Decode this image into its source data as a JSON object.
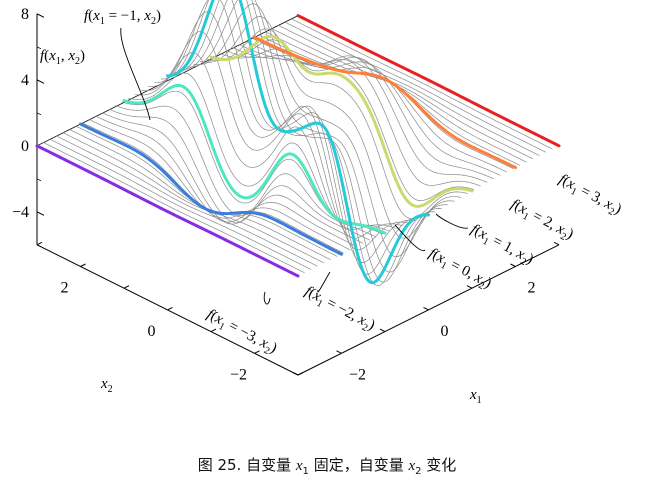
{
  "caption": {
    "prefix": "图 25. 自变量 ",
    "var1": "x",
    "sub1": "1",
    "middle": " 固定，自变量 ",
    "var2": "x",
    "sub2": "2",
    "suffix": " 变化"
  },
  "chart_data": {
    "type": "surface-3d-line-family",
    "zlabel": "f(x1, x2)",
    "xlabel": "x1",
    "ylabel": "x2",
    "x1_range": [
      -3,
      3
    ],
    "x2_range": [
      -3,
      3
    ],
    "z_range": [
      -6,
      8
    ],
    "z_ticks": [
      {
        "value": 8,
        "label": "8"
      },
      {
        "value": 4,
        "label": "4"
      },
      {
        "value": 0,
        "label": "0"
      },
      {
        "value": -4,
        "label": "−4"
      }
    ],
    "x1_ticks": [
      {
        "value": 2,
        "label": "2"
      },
      {
        "value": 0,
        "label": "0"
      },
      {
        "value": -2,
        "label": "−2"
      }
    ],
    "x2_ticks": [
      {
        "value": 2,
        "label": "2"
      },
      {
        "value": 0,
        "label": "0"
      },
      {
        "value": -2,
        "label": "−2"
      }
    ],
    "grid_lines": 41,
    "highlighted_series": [
      {
        "x1": -3,
        "label": "f(x1 = −3, x2)",
        "color": "#8a2be2"
      },
      {
        "x1": -2,
        "label": "f(x1 = −2, x2)",
        "color": "#3a7de0"
      },
      {
        "x1": -1,
        "label": "f(x1 = −1, x2)",
        "color": "#4ee8c0"
      },
      {
        "x1": 0,
        "label": "f(x1 = 0, x2)",
        "color": "#25c9d9"
      },
      {
        "x1": 1,
        "label": "f(x1 = 1, x2)",
        "color": "#c9db6e"
      },
      {
        "x1": 2,
        "label": "f(x1 = 2, x2)",
        "color": "#ff7f3a"
      },
      {
        "x1": 3,
        "label": "f(x1 = 3, x2)",
        "color": "#e8201f"
      }
    ],
    "function": "peaks-like: 3(1-x)^2 e^{-x^2-(y+1)^2} - 10(x/5-x^3-y^5) e^{-x^2-y^2} - 1/3 e^{-(x+1)^2-y^2}"
  }
}
